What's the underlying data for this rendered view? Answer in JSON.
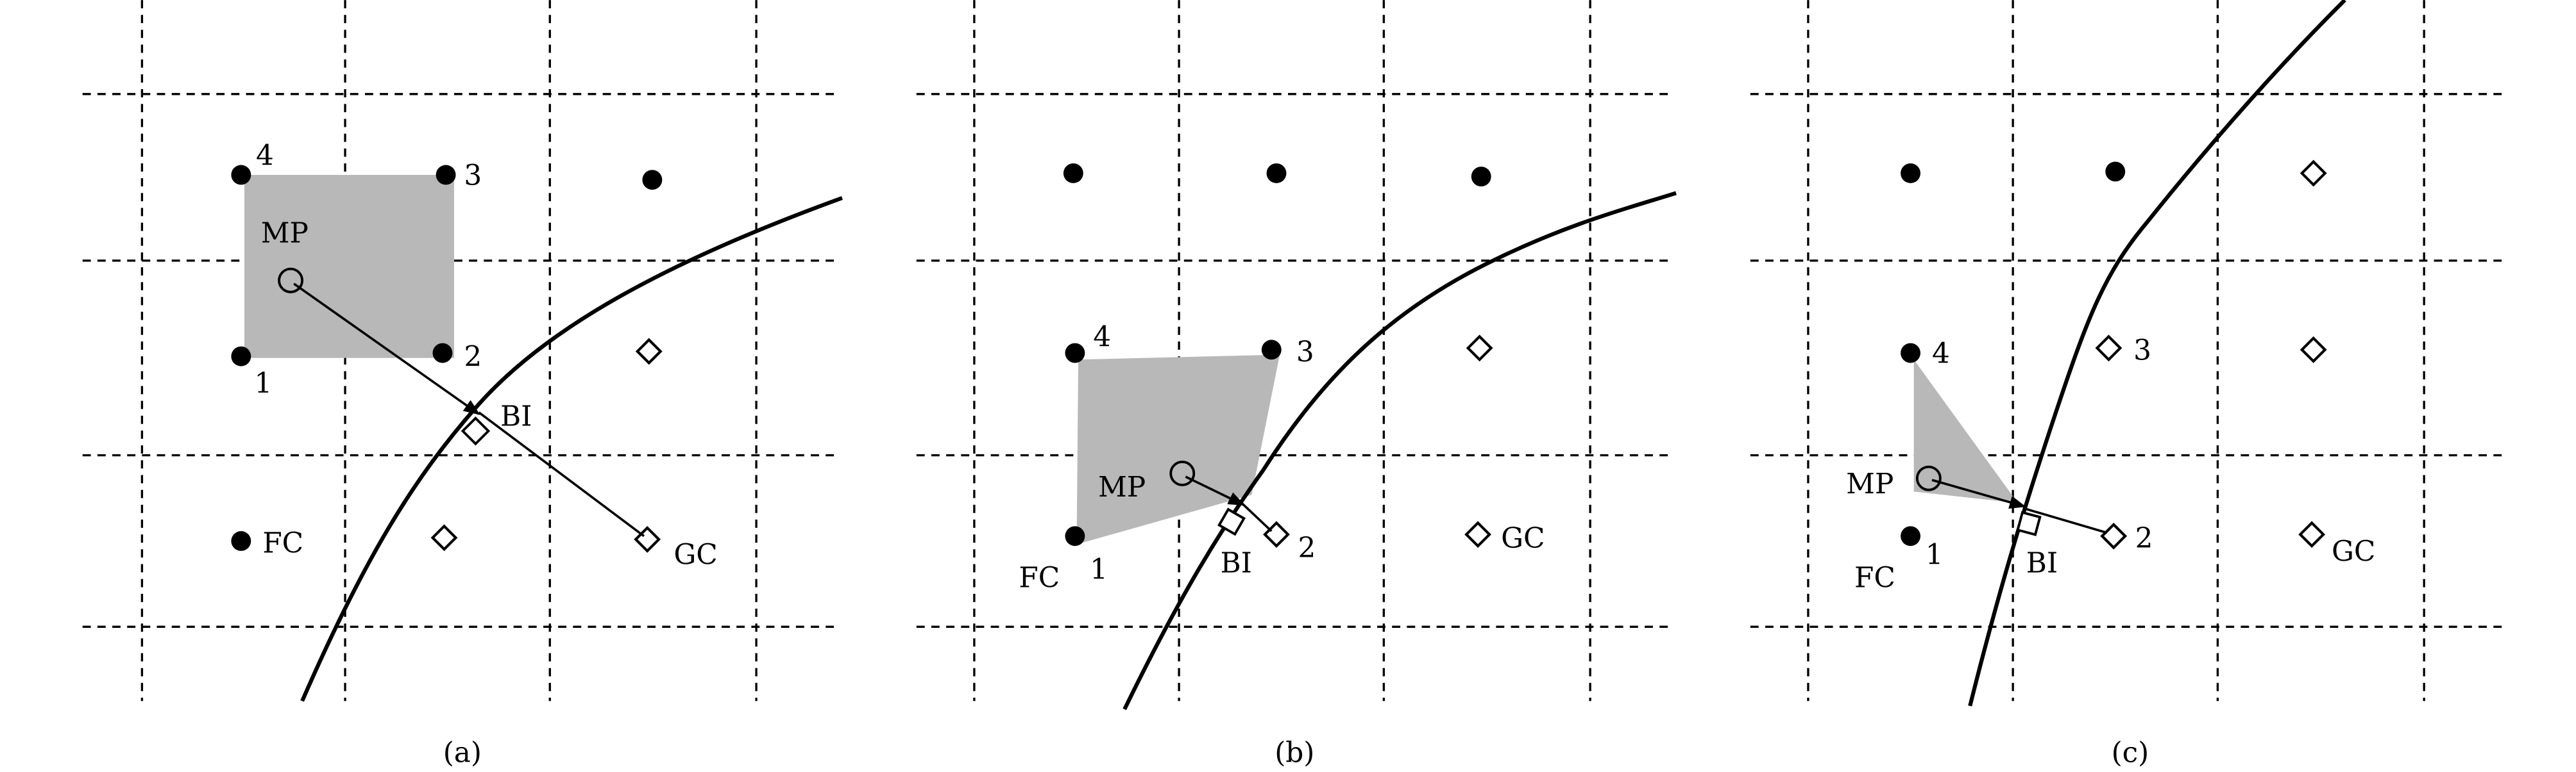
{
  "colors": {
    "fill_region": "#b8b8b8",
    "ink": "#000000"
  },
  "legend_symbols": {
    "fluid_cell": "filled-circle",
    "ghost_cell": "open-diamond",
    "mirror_point": "open-circle",
    "boundary_intersection": "open-square"
  },
  "panels": [
    {
      "caption": "(a)",
      "labels": {
        "p4": "4",
        "p3": "3",
        "p1": "1",
        "p2": "2",
        "mp": "MP",
        "bi": "BI",
        "fc": "FC",
        "gc": "GC"
      }
    },
    {
      "caption": "(b)",
      "labels": {
        "p4": "4",
        "p3": "3",
        "p1": "1",
        "p2": "2",
        "mp": "MP",
        "bi": "BI",
        "fc": "FC",
        "gc": "GC"
      }
    },
    {
      "caption": "(c)",
      "labels": {
        "p4": "4",
        "p3": "3",
        "p1": "1",
        "p2": "2",
        "mp": "MP",
        "bi": "BI",
        "fc": "FC",
        "gc": "GC"
      }
    }
  ]
}
